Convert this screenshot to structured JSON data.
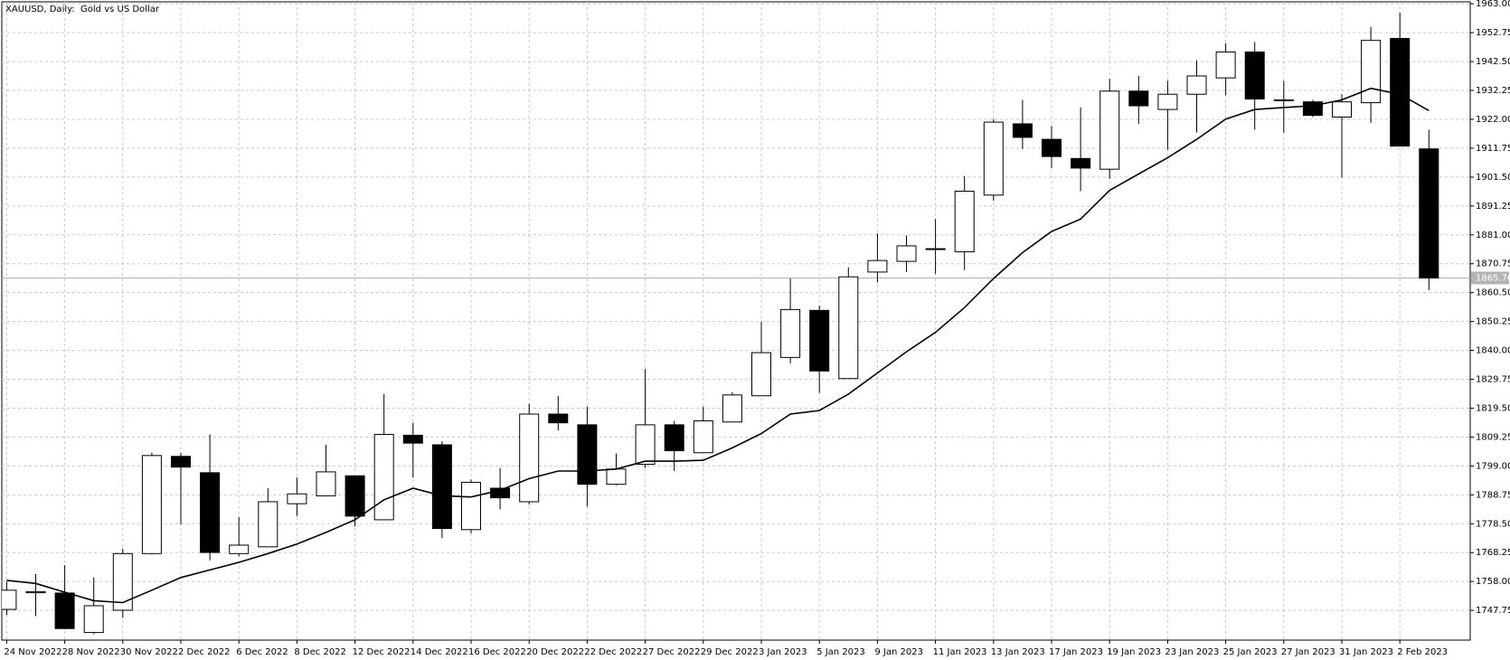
{
  "chart_data": {
    "type": "candlestick",
    "title": "XAUUSD, Daily:  Gold vs US Dollar",
    "categories": [
      "24 Nov 2022",
      null,
      "28 Nov 2022",
      null,
      "30 Nov 2022",
      null,
      "2 Dec 2022",
      null,
      "6 Dec 2022",
      null,
      "8 Dec 2022",
      null,
      "12 Dec 2022",
      null,
      "14 Dec 2022",
      null,
      "16 Dec 2022",
      null,
      "20 Dec 2022",
      null,
      "22 Dec 2022",
      null,
      "27 Dec 2022",
      null,
      "29 Dec 2022",
      null,
      "3 Jan 2023",
      null,
      "5 Jan 2023",
      null,
      "9 Jan 2023",
      null,
      "11 Jan 2023",
      null,
      "13 Jan 2023",
      null,
      "17 Jan 2023",
      null,
      "19 Jan 2023",
      null,
      "23 Jan 2023",
      null,
      "25 Jan 2023",
      null,
      "27 Jan 2023",
      null,
      "31 Jan 2023",
      null,
      "2 Feb 2023",
      null
    ],
    "open": [
      1748.1,
      1754.0,
      1753.9,
      1739.9,
      1747.8,
      1767.9,
      1802.4,
      1796.6,
      1767.9,
      1770.3,
      1785.6,
      1788.4,
      1795.5,
      1779.9,
      1809.9,
      1806.5,
      1776.4,
      1791.1,
      1786.3,
      1817.4,
      1813.6,
      1792.5,
      1799.6,
      1813.6,
      1803.7,
      1814.6,
      1823.9,
      1837.5,
      1854.2,
      1830.0,
      1867.8,
      1871.6,
      1876.1,
      1875.0,
      1895.1,
      1920.4,
      1914.9,
      1908.1,
      1904.3,
      1932.0,
      1925.5,
      1930.9,
      1936.7,
      1945.9,
      1928.9,
      1928.2,
      1922.8,
      1927.9,
      1950.7,
      1911.5
    ],
    "high": [
      1758.0,
      1760.6,
      1763.8,
      1759.4,
      1769.6,
      1803.7,
      1803.7,
      1810.2,
      1780.9,
      1791.1,
      1794.9,
      1806.5,
      1795.5,
      1824.5,
      1814.3,
      1807.8,
      1794.2,
      1798.3,
      1821.1,
      1823.8,
      1820.1,
      1803.4,
      1833.4,
      1815.0,
      1820.1,
      1825.2,
      1850.1,
      1865.5,
      1855.9,
      1869.5,
      1881.5,
      1880.8,
      1886.6,
      1901.9,
      1922.1,
      1928.9,
      1919.7,
      1926.2,
      1936.4,
      1937.4,
      1935.7,
      1942.9,
      1949.0,
      1949.4,
      1935.7,
      1928.9,
      1930.9,
      1954.8,
      1959.9,
      1918.3
    ],
    "low": [
      1746.1,
      1745.7,
      1741.0,
      1739.3,
      1745.1,
      1767.6,
      1778.2,
      1765.5,
      1766.9,
      1770.3,
      1781.2,
      1788.4,
      1777.5,
      1779.9,
      1794.9,
      1773.4,
      1775.1,
      1783.6,
      1785.3,
      1811.6,
      1784.6,
      1792.1,
      1798.3,
      1797.2,
      1803.7,
      1814.6,
      1823.9,
      1835.4,
      1824.9,
      1830.0,
      1864.1,
      1867.8,
      1867.2,
      1868.5,
      1893.1,
      1911.5,
      1904.7,
      1896.5,
      1900.9,
      1920.4,
      1911.2,
      1917.3,
      1930.6,
      1918.3,
      1917.3,
      1922.8,
      1901.3,
      1920.7,
      1912.5,
      1861.4
    ],
    "close": [
      1754.9,
      1754.4,
      1741.3,
      1749.4,
      1767.9,
      1802.7,
      1798.6,
      1768.3,
      1770.9,
      1786.3,
      1789.1,
      1796.9,
      1781.2,
      1810.2,
      1807.1,
      1776.8,
      1793.2,
      1787.7,
      1817.4,
      1814.3,
      1792.5,
      1797.9,
      1813.6,
      1804.4,
      1815.0,
      1824.2,
      1839.2,
      1854.5,
      1832.7,
      1866.1,
      1871.9,
      1877.1,
      1875.9,
      1896.5,
      1921.0,
      1915.6,
      1908.8,
      1904.7,
      1932.0,
      1926.8,
      1930.9,
      1937.4,
      1945.9,
      1929.2,
      1928.8,
      1923.4,
      1928.2,
      1950.0,
      1912.5,
      1865.7
    ],
    "line_values": [
      1758.4,
      1757.3,
      1754.2,
      1751.2,
      1750.5,
      1754.9,
      1759.4,
      1762.1,
      1764.8,
      1767.9,
      1771.3,
      1775.4,
      1779.9,
      1787.0,
      1791.1,
      1788.4,
      1788.0,
      1790.4,
      1794.5,
      1797.2,
      1797.2,
      1797.9,
      1800.7,
      1800.7,
      1801.0,
      1805.4,
      1810.5,
      1817.4,
      1818.7,
      1824.5,
      1832.0,
      1839.5,
      1846.4,
      1855.2,
      1865.5,
      1874.7,
      1882.2,
      1886.6,
      1896.8,
      1902.6,
      1908.4,
      1914.9,
      1922.1,
      1925.5,
      1926.2,
      1926.8,
      1928.9,
      1933.0,
      1930.9,
      1925.1
    ],
    "up_color": "#ffffff",
    "down_color": "#000000",
    "line_color": "#000000",
    "grid": true,
    "ylim": [
      1737.2,
      1963.7
    ],
    "yticks": [
      {
        "value": 1963.0,
        "label": "1963.00"
      },
      {
        "value": 1952.75,
        "label": "1952.75"
      },
      {
        "value": 1942.5,
        "label": "1942.50"
      },
      {
        "value": 1932.25,
        "label": "1932.25"
      },
      {
        "value": 1922.0,
        "label": "1922.00"
      },
      {
        "value": 1911.75,
        "label": "1911.75"
      },
      {
        "value": 1901.5,
        "label": "1901.50"
      },
      {
        "value": 1891.25,
        "label": "1891.25"
      },
      {
        "value": 1881.0,
        "label": "1881.00"
      },
      {
        "value": 1870.75,
        "label": "1870.75"
      },
      {
        "value": 1860.5,
        "label": "1860.50"
      },
      {
        "value": 1850.25,
        "label": "1850.25"
      },
      {
        "value": 1840.0,
        "label": "1840.00"
      },
      {
        "value": 1829.75,
        "label": "1829.75"
      },
      {
        "value": 1819.5,
        "label": "1819.50"
      },
      {
        "value": 1809.25,
        "label": "1809.25"
      },
      {
        "value": 1799.0,
        "label": "1799.00"
      },
      {
        "value": 1788.75,
        "label": "1788.75"
      },
      {
        "value": 1778.5,
        "label": "1778.50"
      },
      {
        "value": 1768.25,
        "label": "1768.25"
      },
      {
        "value": 1758.0,
        "label": "1758.00"
      },
      {
        "value": 1747.75,
        "label": "1747.75"
      }
    ],
    "price_line": {
      "value": 1865.7,
      "label": "1865.70"
    }
  }
}
